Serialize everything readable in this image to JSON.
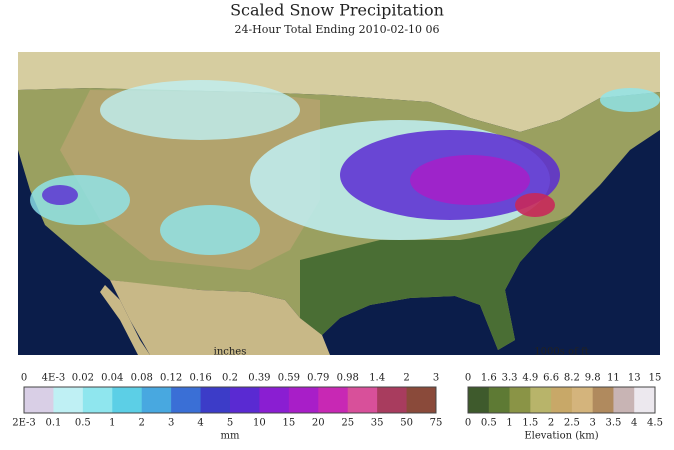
{
  "header": {
    "title": "Scaled Snow Precipitation",
    "subtitle": "24-Hour Total Ending 2010-02-10 06"
  },
  "precip_legend": {
    "top_unit": "inches",
    "top_labels": [
      "0",
      "4E-3",
      "0.02",
      "0.04",
      "0.08",
      "0.12",
      "0.16",
      "0.2",
      "0.39",
      "0.59",
      "0.79",
      "0.98",
      "1.4",
      "2",
      "3"
    ],
    "bottom_labels": [
      "2E-3",
      "0.1",
      "0.5",
      "1",
      "2",
      "3",
      "4",
      "5",
      "10",
      "15",
      "20",
      "25",
      "35",
      "50",
      "75"
    ],
    "bottom_unit": "mm",
    "colors": [
      "#d9cfe6",
      "#bff0f4",
      "#8fe6ee",
      "#5ccfe6",
      "#48a8e0",
      "#3a6fd6",
      "#3c3cc8",
      "#5a2ad2",
      "#8a1ed2",
      "#a81ec8",
      "#c828b4",
      "#d8509a",
      "#a83c5e",
      "#8a4a3a"
    ]
  },
  "elevation_legend": {
    "top_unit": "1000s of ft",
    "top_labels": [
      "0",
      "1.6",
      "3.3",
      "4.9",
      "6.6",
      "8.2",
      "9.8",
      "11",
      "13",
      "15"
    ],
    "bottom_labels": [
      "0",
      "0.5",
      "1",
      "1.5",
      "2",
      "2.5",
      "3",
      "3.5",
      "4",
      "4.5"
    ],
    "bottom_unit": "Elevation (km)",
    "colors": [
      "#3e5a2c",
      "#5e7a34",
      "#8a9446",
      "#b8b46a",
      "#c8a868",
      "#d4b47c",
      "#b08a5e",
      "#c8b4b4",
      "#ece8ee"
    ]
  }
}
